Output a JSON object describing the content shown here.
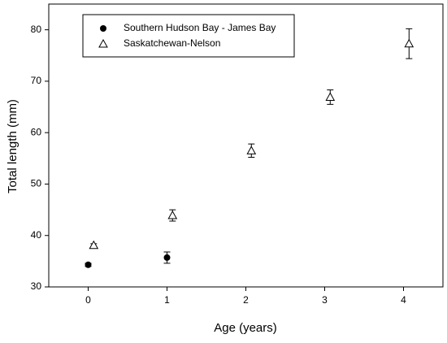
{
  "chart_data": {
    "type": "scatter",
    "xlabel": "Age (years)",
    "ylabel": "Total length (mm)",
    "xlim": [
      -0.5,
      4.5
    ],
    "xticks": [
      0,
      1,
      2,
      3,
      4
    ],
    "ylim": [
      30,
      85
    ],
    "yticks": [
      30,
      40,
      50,
      60,
      70,
      80
    ],
    "legend": "upper left",
    "series": [
      {
        "name": "Southern Hudson Bay - James Bay",
        "color": "#000000",
        "marker": "circle",
        "x": [
          0,
          1
        ],
        "values": [
          34.3,
          35.7
        ],
        "errors": [
          0.3,
          1.1
        ]
      },
      {
        "name": "Saskatchewan-Nelson",
        "color": "#000000",
        "marker": "triangle",
        "x": [
          0.07,
          1.07,
          2.07,
          3.07,
          4.07
        ],
        "values": [
          38.1,
          43.9,
          56.5,
          66.9,
          77.3
        ],
        "errors": [
          0.3,
          1.1,
          1.3,
          1.4,
          2.9
        ]
      }
    ]
  }
}
